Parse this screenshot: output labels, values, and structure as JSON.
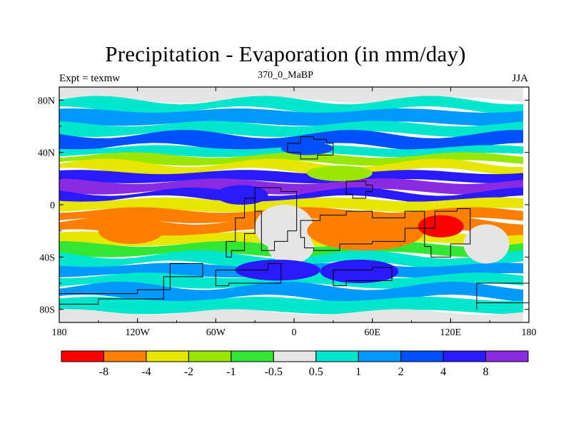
{
  "header": {
    "title": "Precipitation - Evaporation (in mm/day)",
    "left": "Expt = texmw",
    "center": "370_0_MaBP",
    "right": "JJA"
  },
  "chart_data": {
    "type": "heatmap",
    "title": "Precipitation - Evaporation (in mm/day)",
    "x_ticks": [
      "180",
      "120W",
      "60W",
      "0",
      "60E",
      "120E",
      "180"
    ],
    "y_ticks": [
      "80N",
      "40N",
      "0",
      "40S",
      "80S"
    ],
    "xlim": [
      -180,
      180
    ],
    "ylim": [
      -90,
      90
    ],
    "colorbar": {
      "labels": [
        "-8",
        "-4",
        "-2",
        "-1",
        "-0.5",
        "0.5",
        "1",
        "2",
        "4",
        "8"
      ],
      "colors": [
        "#ff0000",
        "#ff8000",
        "#e6e600",
        "#99e600",
        "#33e633",
        "#e5e5e5",
        "#00e6cc",
        "#0099ff",
        "#0050ff",
        "#2a1aff",
        "#8a2be2"
      ]
    },
    "bands": [
      {
        "lat": [
          90,
          80
        ],
        "class": 5
      },
      {
        "lat": [
          80,
          72
        ],
        "class": 6
      },
      {
        "lat": [
          72,
          62
        ],
        "class": 7
      },
      {
        "lat": [
          62,
          54
        ],
        "class": 6
      },
      {
        "lat": [
          54,
          44
        ],
        "class": 8
      },
      {
        "lat": [
          44,
          38
        ],
        "class": 6
      },
      {
        "lat": [
          38,
          32
        ],
        "class": 3
      },
      {
        "lat": [
          32,
          25
        ],
        "class": 2
      },
      {
        "lat": [
          25,
          18
        ],
        "class": 9
      },
      {
        "lat": [
          18,
          10
        ],
        "class": 10
      },
      {
        "lat": [
          10,
          4
        ],
        "class": 9
      },
      {
        "lat": [
          4,
          -4
        ],
        "class": 2
      },
      {
        "lat": [
          -4,
          -12
        ],
        "class": 1
      },
      {
        "lat": [
          -12,
          -22
        ],
        "class": 1
      },
      {
        "lat": [
          -22,
          -30
        ],
        "class": 2
      },
      {
        "lat": [
          -30,
          -38
        ],
        "class": 4
      },
      {
        "lat": [
          -38,
          -46
        ],
        "class": 6
      },
      {
        "lat": [
          -46,
          -54
        ],
        "class": 7
      },
      {
        "lat": [
          -54,
          -62
        ],
        "class": 6
      },
      {
        "lat": [
          -62,
          -72
        ],
        "class": 7
      },
      {
        "lat": [
          -72,
          -82
        ],
        "class": 6
      },
      {
        "lat": [
          -82,
          -90
        ],
        "class": 5
      }
    ],
    "patches": [
      {
        "lon": [
          -30,
          15
        ],
        "lat": [
          0,
          -35
        ],
        "class": 5
      },
      {
        "lon": [
          10,
          100
        ],
        "lat": [
          -5,
          -35
        ],
        "class": 1
      },
      {
        "lon": [
          95,
          130
        ],
        "lat": [
          -8,
          -25
        ],
        "class": 0
      },
      {
        "lon": [
          -60,
          -20
        ],
        "lat": [
          15,
          0
        ],
        "class": 9
      },
      {
        "lon": [
          130,
          165
        ],
        "lat": [
          -15,
          -45
        ],
        "class": 5
      },
      {
        "lon": [
          -20,
          15
        ],
        "lat": [
          -20,
          -45
        ],
        "class": 5
      },
      {
        "lon": [
          -150,
          -100
        ],
        "lat": [
          -10,
          -30
        ],
        "class": 1
      },
      {
        "lon": [
          -45,
          20
        ],
        "lat": [
          -42,
          -58
        ],
        "class": 9
      },
      {
        "lon": [
          20,
          80
        ],
        "lat": [
          -42,
          -60
        ],
        "class": 9
      },
      {
        "lon": [
          -10,
          30
        ],
        "lat": [
          48,
          38
        ],
        "class": 8
      },
      {
        "lon": [
          10,
          60
        ],
        "lat": [
          30,
          18
        ],
        "class": 3
      }
    ],
    "landmasses": [
      [
        [
          -30,
          13
        ],
        [
          -20,
          13
        ],
        [
          -10,
          10
        ],
        [
          2,
          10
        ],
        [
          2,
          -20
        ],
        [
          -5,
          -28
        ],
        [
          -15,
          -35
        ],
        [
          -25,
          -30
        ],
        [
          -25,
          -5
        ]
      ],
      [
        [
          -38,
          5
        ],
        [
          -30,
          5
        ],
        [
          -30,
          -22
        ],
        [
          -38,
          -35
        ],
        [
          -48,
          -40
        ],
        [
          -52,
          -28
        ],
        [
          -45,
          -10
        ]
      ],
      [
        [
          5,
          -12
        ],
        [
          20,
          -8
        ],
        [
          40,
          -5
        ],
        [
          60,
          -10
        ],
        [
          85,
          -5
        ],
        [
          100,
          -8
        ],
        [
          100,
          -18
        ],
        [
          85,
          -28
        ],
        [
          60,
          -30
        ],
        [
          35,
          -35
        ],
        [
          15,
          -33
        ],
        [
          8,
          -25
        ]
      ],
      [
        [
          108,
          -5
        ],
        [
          125,
          -3
        ],
        [
          135,
          -15
        ],
        [
          135,
          -30
        ],
        [
          120,
          -40
        ],
        [
          105,
          -32
        ],
        [
          100,
          -18
        ]
      ],
      [
        [
          -5,
          47
        ],
        [
          5,
          52
        ],
        [
          15,
          50
        ],
        [
          25,
          47
        ],
        [
          30,
          38
        ],
        [
          18,
          35
        ],
        [
          5,
          40
        ]
      ],
      [
        [
          40,
          18
        ],
        [
          55,
          15
        ],
        [
          60,
          10
        ],
        [
          55,
          5
        ],
        [
          45,
          8
        ]
      ],
      [
        [
          -60,
          -50
        ],
        [
          -20,
          -45
        ],
        [
          -10,
          -60
        ],
        [
          -50,
          -62
        ]
      ],
      [
        [
          30,
          -50
        ],
        [
          60,
          -48
        ],
        [
          75,
          -58
        ],
        [
          40,
          -62
        ]
      ],
      [
        [
          140,
          -60
        ],
        [
          180,
          -55
        ],
        [
          180,
          -75
        ],
        [
          140,
          -80
        ]
      ],
      [
        [
          -180,
          -68
        ],
        [
          -120,
          -65
        ],
        [
          -95,
          -45
        ],
        [
          -70,
          -55
        ],
        [
          -100,
          -72
        ],
        [
          -150,
          -76
        ],
        [
          -180,
          -78
        ]
      ]
    ]
  }
}
